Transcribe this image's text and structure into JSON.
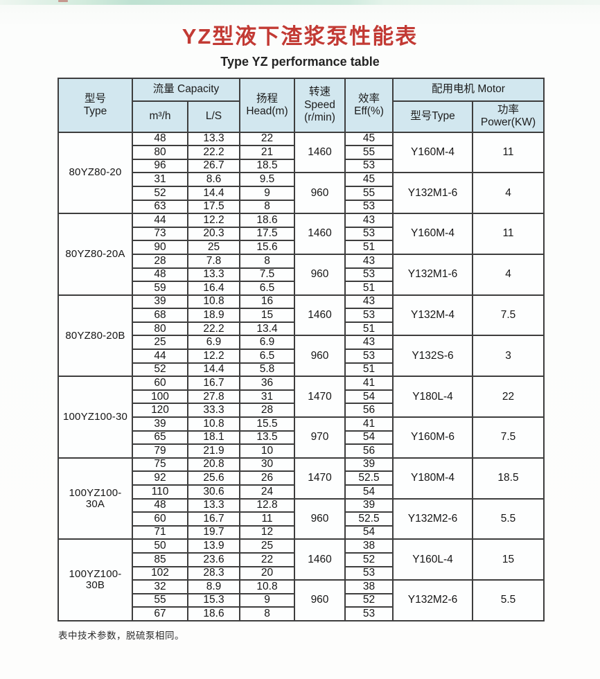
{
  "page": {
    "title": "YZ型液下渣浆泵性能表",
    "subtitle": "Type YZ performance table",
    "footnote": "表中技术参数，脱硫泵相同。",
    "title_color": "#c23a34",
    "header_fill": "#d2e7ef",
    "border_color": "#3d3d3d"
  },
  "table": {
    "headers": {
      "model": "型号\nType",
      "capacity": "流量 Capacity",
      "m3h": "m³/h",
      "ls": "L/S",
      "head": "扬程\nHead(m)",
      "speed": "转速\nSpeed\n(r/min)",
      "eff": "效率\nEff(%)",
      "motor": "配用电机 Motor",
      "motor_model": "型号Type",
      "motor_power": "功率Power(KW)"
    },
    "groups": [
      {
        "model": "80YZ80-20",
        "blocks": [
          {
            "speed": 1460,
            "motor": "Y160M-4",
            "power": 11,
            "rows": [
              [
                48,
                13.3,
                22,
                45
              ],
              [
                80,
                22.2,
                21,
                55
              ],
              [
                96,
                26.7,
                18.5,
                53
              ]
            ]
          },
          {
            "speed": 960,
            "motor": "Y132M1-6",
            "power": 4,
            "rows": [
              [
                31,
                8.6,
                9.5,
                45
              ],
              [
                52,
                14.4,
                9,
                55
              ],
              [
                63,
                17.5,
                8,
                53
              ]
            ]
          }
        ]
      },
      {
        "model": "80YZ80-20A",
        "blocks": [
          {
            "speed": 1460,
            "motor": "Y160M-4",
            "power": 11,
            "rows": [
              [
                44,
                12.2,
                18.6,
                43
              ],
              [
                73,
                20.3,
                17.5,
                53
              ],
              [
                90,
                25,
                15.6,
                51
              ]
            ]
          },
          {
            "speed": 960,
            "motor": "Y132M1-6",
            "power": 4,
            "rows": [
              [
                28,
                7.8,
                8,
                43
              ],
              [
                48,
                13.3,
                7.5,
                53
              ],
              [
                59,
                16.4,
                6.5,
                51
              ]
            ]
          }
        ]
      },
      {
        "model": "80YZ80-20B",
        "blocks": [
          {
            "speed": 1460,
            "motor": "Y132M-4",
            "power": 7.5,
            "rows": [
              [
                39,
                10.8,
                16,
                43
              ],
              [
                68,
                18.9,
                15,
                53
              ],
              [
                80,
                22.2,
                13.4,
                51
              ]
            ]
          },
          {
            "speed": 960,
            "motor": "Y132S-6",
            "power": 3,
            "rows": [
              [
                25,
                6.9,
                6.9,
                43
              ],
              [
                44,
                12.2,
                6.5,
                53
              ],
              [
                52,
                14.4,
                5.8,
                51
              ]
            ]
          }
        ]
      },
      {
        "model": "100YZ100-30",
        "blocks": [
          {
            "speed": 1470,
            "motor": "Y180L-4",
            "power": 22,
            "rows": [
              [
                60,
                16.7,
                36,
                41
              ],
              [
                100,
                27.8,
                31,
                54
              ],
              [
                120,
                33.3,
                28,
                56
              ]
            ]
          },
          {
            "speed": 970,
            "motor": "Y160M-6",
            "power": 7.5,
            "rows": [
              [
                39,
                10.8,
                15.5,
                41
              ],
              [
                65,
                18.1,
                13.5,
                54
              ],
              [
                79,
                21.9,
                10,
                56
              ]
            ]
          }
        ]
      },
      {
        "model": "100YZ100-30A",
        "blocks": [
          {
            "speed": 1470,
            "motor": "Y180M-4",
            "power": 18.5,
            "rows": [
              [
                75,
                20.8,
                30,
                39
              ],
              [
                92,
                25.6,
                26,
                52.5
              ],
              [
                110,
                30.6,
                24,
                54
              ]
            ]
          },
          {
            "speed": 960,
            "motor": "Y132M2-6",
            "power": 5.5,
            "rows": [
              [
                48,
                13.3,
                12.8,
                39
              ],
              [
                60,
                16.7,
                11,
                52.5
              ],
              [
                71,
                19.7,
                12,
                54
              ]
            ]
          }
        ]
      },
      {
        "model": "100YZ100-30B",
        "blocks": [
          {
            "speed": 1460,
            "motor": "Y160L-4",
            "power": 15,
            "rows": [
              [
                50,
                13.9,
                25,
                38
              ],
              [
                85,
                23.6,
                22,
                52
              ],
              [
                102,
                28.3,
                20,
                53
              ]
            ]
          },
          {
            "speed": 960,
            "motor": "Y132M2-6",
            "power": 5.5,
            "rows": [
              [
                32,
                8.9,
                10.8,
                38
              ],
              [
                55,
                15.3,
                9,
                52
              ],
              [
                67,
                18.6,
                8,
                53
              ]
            ]
          }
        ]
      }
    ]
  }
}
